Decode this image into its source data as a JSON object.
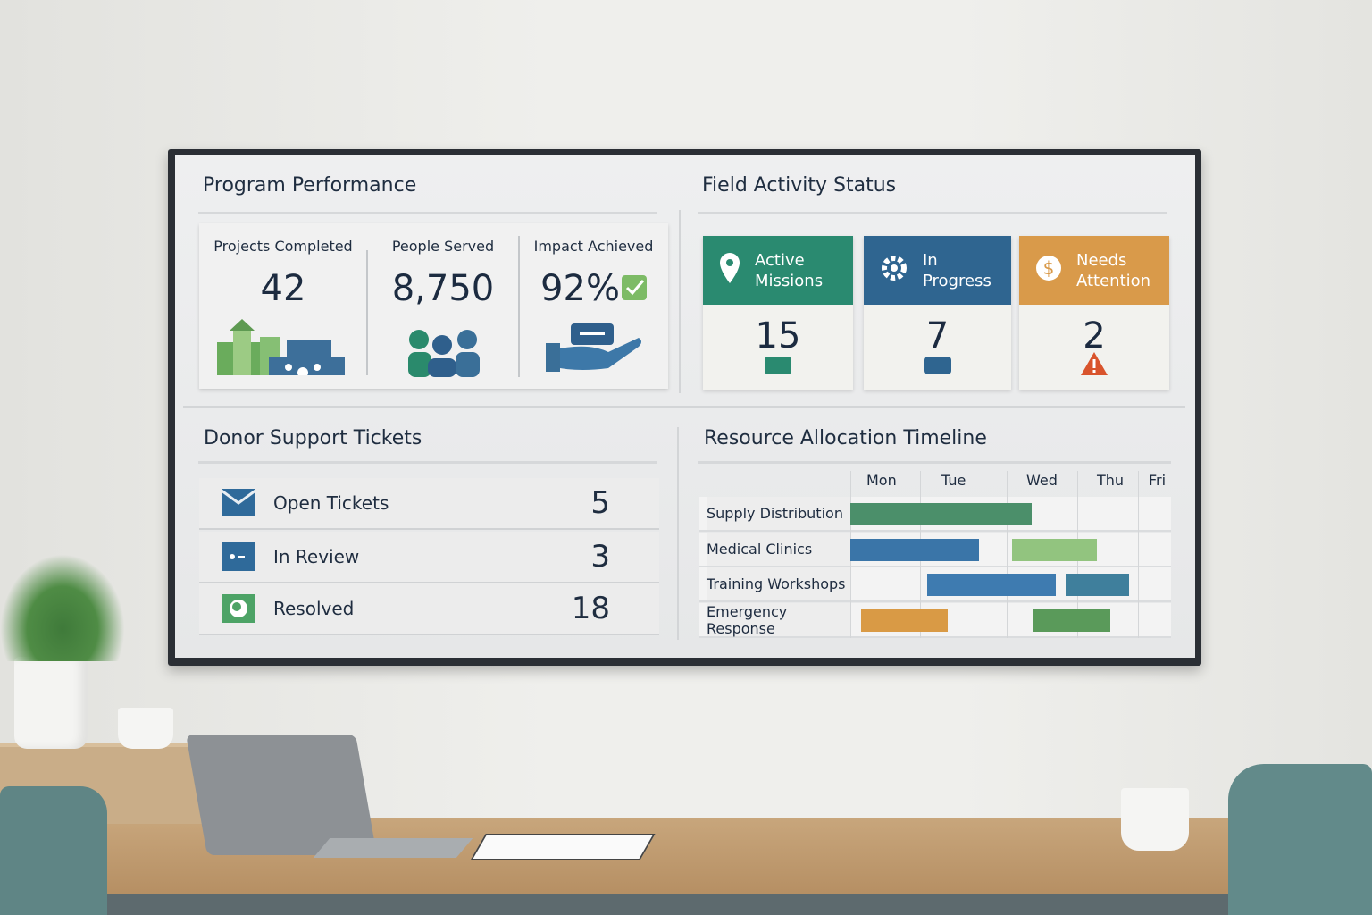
{
  "program_performance": {
    "title": "Program Performance",
    "kpis": [
      {
        "label": "Projects Completed",
        "value": "42",
        "icon": "buildings-icon"
      },
      {
        "label": "People Served",
        "value": "8,750",
        "icon": "people-icon"
      },
      {
        "label": "Impact Achieved",
        "value": "92%",
        "icon": "hand-giving-icon",
        "badge_icon": "check-icon"
      }
    ]
  },
  "field_activity": {
    "title": "Field Activity Status",
    "cards": [
      {
        "label_1": "Active",
        "label_2": "Missions",
        "value": "15",
        "color": "#2a8a70",
        "icon": "map-pin-icon"
      },
      {
        "label_1": "In",
        "label_2": "Progress",
        "value": "7",
        "color": "#2f6590",
        "icon": "gear-icon"
      },
      {
        "label_1": "Needs",
        "label_2": "Attention",
        "value": "2",
        "color": "#d99a4a",
        "icon": "dollar-icon",
        "badge_icon": "warning-icon"
      }
    ]
  },
  "donor_tickets": {
    "title": "Donor Support Tickets",
    "rows": [
      {
        "label": "Open Tickets",
        "count": "5",
        "icon": "envelope-icon",
        "color": "#2f6a9a"
      },
      {
        "label": "In Review",
        "count": "3",
        "icon": "id-card-icon",
        "color": "#2f6a9a"
      },
      {
        "label": "Resolved",
        "count": "18",
        "icon": "globe-icon",
        "color": "#4da366"
      }
    ]
  },
  "timeline": {
    "title": "Resource Allocation Timeline",
    "days": [
      "Mon",
      "Tue",
      "Wed",
      "Thu",
      "Fri"
    ],
    "rows": [
      {
        "label": "Supply Distribution",
        "bars": [
          {
            "start": 0,
            "end": 2.35,
            "color": "#4b8f6a"
          }
        ]
      },
      {
        "label": "Medical Clinics",
        "bars": [
          {
            "start": 0,
            "end": 1.68,
            "color": "#3a75a8"
          },
          {
            "start": 2.08,
            "end": 3.32,
            "color": "#92c47f"
          }
        ]
      },
      {
        "label": "Training Workshops",
        "bars": [
          {
            "start": 1.08,
            "end": 2.7,
            "color": "#3e7bb0"
          },
          {
            "start": 2.83,
            "end": 3.85,
            "color": "#3f7f9c"
          }
        ]
      },
      {
        "label": "Emergency Response",
        "bars": [
          {
            "start": 0.16,
            "end": 1.32,
            "color": "#d99a45"
          },
          {
            "start": 2.37,
            "end": 3.55,
            "color": "#5a9a5a"
          }
        ]
      }
    ]
  }
}
